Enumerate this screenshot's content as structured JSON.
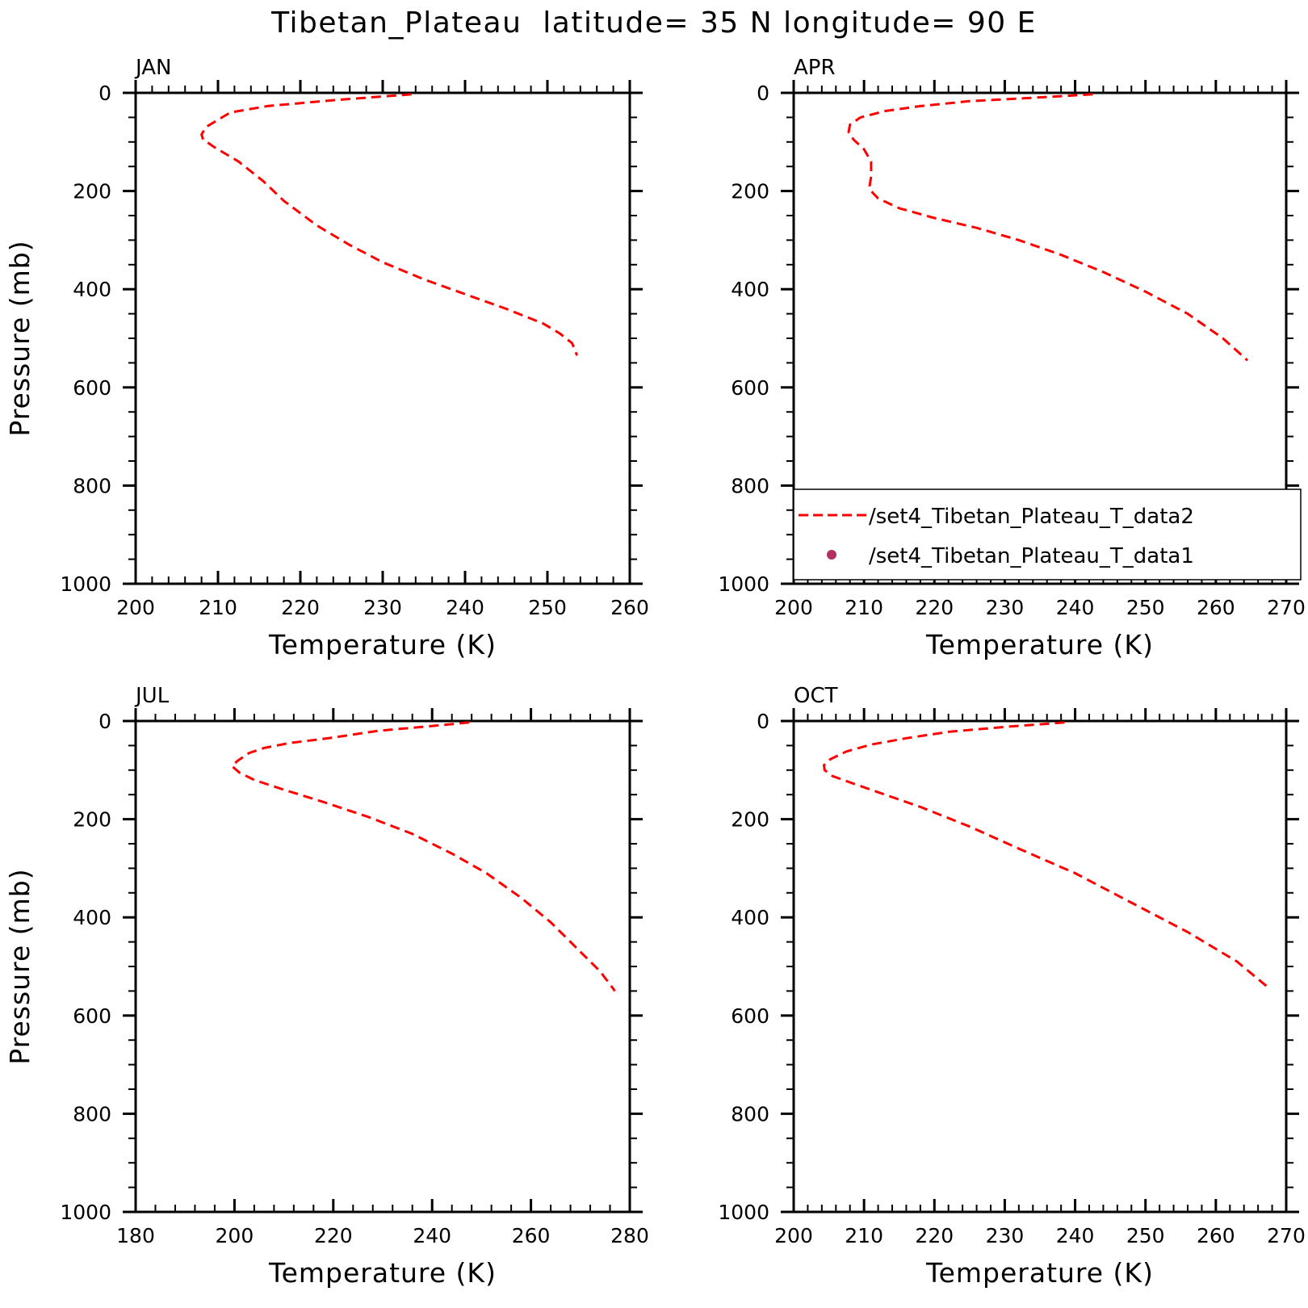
{
  "figure": {
    "title": "Tibetan_Plateau  latitude= 35 N longitude= 90 E"
  },
  "colors": {
    "data2_line": "#ff0000",
    "data1_marker": "#b03060",
    "axis": "#000000"
  },
  "legend": {
    "panel": "APR",
    "placement": "lower-right",
    "entries": [
      {
        "label": "/set4_Tibetan_Plateau_T_data2",
        "style": "dashed-line",
        "color": "#ff0000"
      },
      {
        "label": "/set4_Tibetan_Plateau_T_data1",
        "style": "dot",
        "color": "#b03060"
      }
    ]
  },
  "chart_data": [
    {
      "type": "line",
      "title": "JAN",
      "xlabel": "Temperature (K)",
      "ylabel": "Pressure (mb)",
      "xlim": [
        200,
        260
      ],
      "ylim": [
        1000,
        0
      ],
      "xticks": [
        "200",
        "210",
        "220",
        "230",
        "240",
        "250",
        "260"
      ],
      "yticks": [
        "0",
        "200",
        "400",
        "600",
        "800",
        "1000"
      ],
      "grid": false,
      "series": [
        {
          "name": "/set4_Tibetan_Plateau_T_data2",
          "style": "dashed",
          "color": "#ff0000",
          "x": [
            233.5,
            224,
            216,
            211.5,
            210,
            208.5,
            208,
            208.2,
            209.5,
            212.5,
            215.5,
            218,
            222,
            226,
            230,
            235,
            240,
            245,
            249.5,
            251.5,
            253,
            253.6
          ],
          "y": [
            3,
            15,
            27,
            40,
            55,
            70,
            85,
            95,
            110,
            140,
            180,
            220,
            270,
            310,
            345,
            380,
            410,
            440,
            470,
            490,
            510,
            535
          ]
        }
      ]
    },
    {
      "type": "line",
      "title": "APR",
      "xlabel": "Temperature (K)",
      "ylabel": "",
      "xlim": [
        200,
        270
      ],
      "ylim": [
        1000,
        0
      ],
      "xticks": [
        "200",
        "210",
        "220",
        "230",
        "240",
        "250",
        "260",
        "270"
      ],
      "yticks": [
        "0",
        "200",
        "400",
        "600",
        "800",
        "1000"
      ],
      "grid": false,
      "series": [
        {
          "name": "/set4_Tibetan_Plateau_T_data2",
          "style": "dashed",
          "color": "#ff0000",
          "x": [
            242.5,
            234,
            225,
            218,
            213,
            209.5,
            208,
            207.8,
            208.5,
            210,
            211,
            211,
            210.8,
            211,
            212,
            215,
            220,
            226,
            232,
            238,
            244,
            250,
            256,
            261,
            264.5
          ],
          "y": [
            3,
            10,
            17,
            27,
            37,
            50,
            65,
            80,
            95,
            115,
            140,
            170,
            190,
            200,
            215,
            235,
            255,
            275,
            300,
            330,
            365,
            405,
            450,
            500,
            545
          ]
        }
      ]
    },
    {
      "type": "line",
      "title": "JUL",
      "xlabel": "Temperature (K)",
      "ylabel": "Pressure (mb)",
      "xlim": [
        180,
        280
      ],
      "ylim": [
        1000,
        0
      ],
      "xticks": [
        "180",
        "200",
        "220",
        "240",
        "260",
        "280"
      ],
      "yticks": [
        "0",
        "200",
        "400",
        "600",
        "800",
        "1000"
      ],
      "grid": false,
      "series": [
        {
          "name": "/set4_Tibetan_Plateau_T_data2",
          "style": "dashed",
          "color": "#ff0000",
          "x": [
            247.5,
            238,
            229,
            219,
            211,
            206,
            203,
            201.5,
            200.5,
            199.5,
            201,
            204,
            210,
            218,
            227,
            236,
            244,
            251,
            258,
            264,
            269,
            274,
            277
          ],
          "y": [
            3,
            12,
            20,
            35,
            45,
            55,
            65,
            75,
            82,
            92,
            105,
            120,
            140,
            165,
            195,
            230,
            270,
            310,
            360,
            410,
            460,
            510,
            550
          ]
        }
      ]
    },
    {
      "type": "line",
      "title": "OCT",
      "xlabel": "Temperature (K)",
      "ylabel": "",
      "xlim": [
        200,
        270
      ],
      "ylim": [
        1000,
        0
      ],
      "xticks": [
        "200",
        "210",
        "220",
        "230",
        "240",
        "250",
        "260",
        "270"
      ],
      "yticks": [
        "0",
        "200",
        "400",
        "600",
        "800",
        "1000"
      ],
      "grid": false,
      "series": [
        {
          "name": "/set4_Tibetan_Plateau_T_data2",
          "style": "dashed",
          "color": "#ff0000",
          "x": [
            238.5,
            230,
            222,
            216,
            211,
            207.5,
            205.2,
            204.3,
            204.4,
            205.5,
            208,
            212,
            218,
            225,
            232,
            240,
            248,
            256,
            263,
            267.2
          ],
          "y": [
            3,
            12,
            22,
            35,
            48,
            62,
            78,
            90,
            100,
            112,
            125,
            145,
            175,
            215,
            260,
            310,
            370,
            430,
            490,
            540
          ]
        }
      ]
    }
  ]
}
